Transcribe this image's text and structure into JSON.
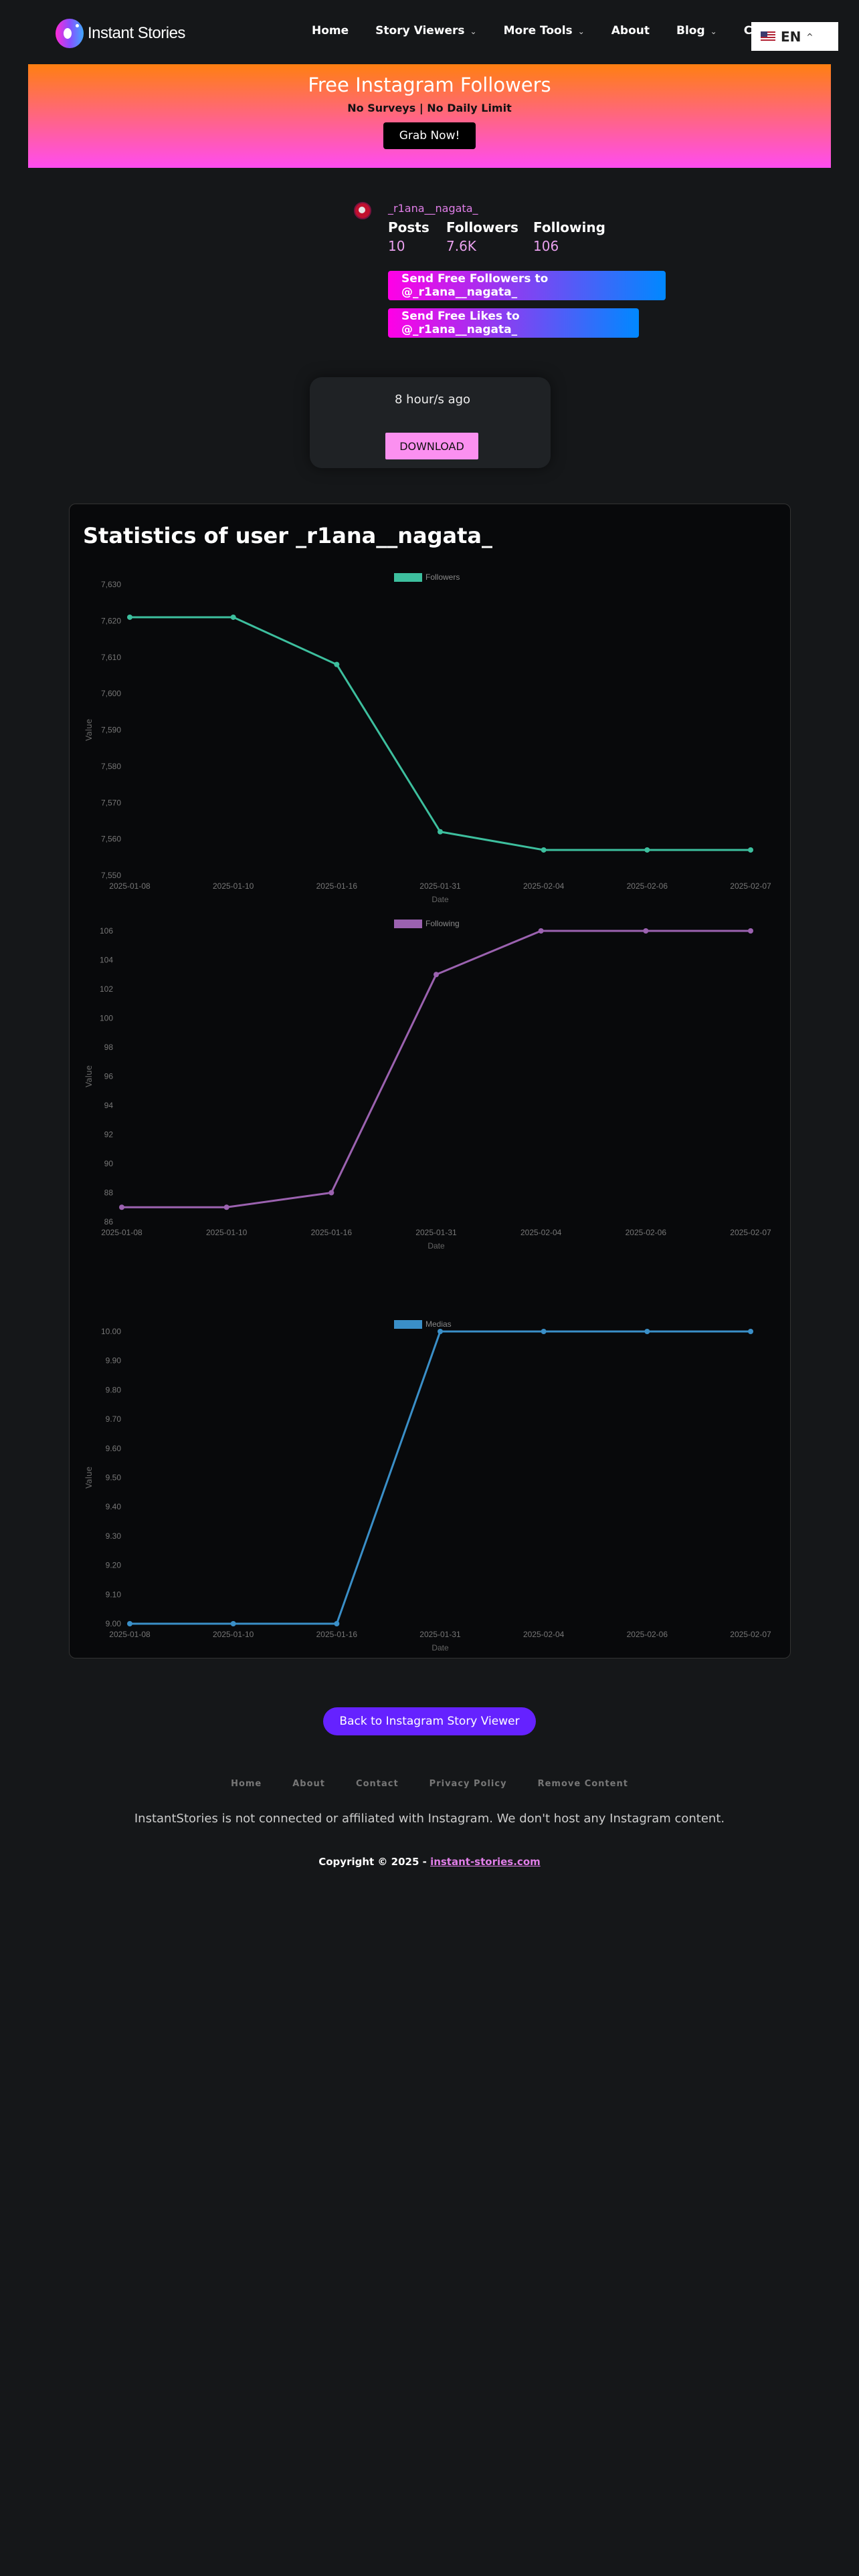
{
  "header": {
    "logo_text": "Instant Stories",
    "nav": [
      {
        "label": "Home",
        "dropdown": false
      },
      {
        "label": "Story Viewers",
        "dropdown": true
      },
      {
        "label": "More Tools",
        "dropdown": true
      },
      {
        "label": "About",
        "dropdown": false
      },
      {
        "label": "Blog",
        "dropdown": true
      },
      {
        "label": "C",
        "dropdown": false
      }
    ],
    "language": "EN"
  },
  "banner": {
    "title": "Free Instagram Followers",
    "subtitle": "No Surveys | No Daily Limit",
    "button": "Grab Now!"
  },
  "profile": {
    "username": "_r1ana__nagata_",
    "stats": [
      {
        "label": "Posts",
        "value": "10"
      },
      {
        "label": "Followers",
        "value": "7.6K"
      },
      {
        "label": "Following",
        "value": "106"
      }
    ],
    "send_followers": "Send Free Followers to @_r1ana__nagata_",
    "send_likes": "Send Free Likes to @_r1ana__nagata_"
  },
  "story_card": {
    "time": "8 hour/s ago",
    "download": "DOWNLOAD"
  },
  "statistics": {
    "title": "Statistics of user _r1ana__nagata_"
  },
  "chart_data": [
    {
      "type": "line",
      "title": "",
      "legend": "Followers",
      "color": "#3dbf9e",
      "xlabel": "Date",
      "ylabel": "Value",
      "categories": [
        "2025-01-08",
        "2025-01-10",
        "2025-01-16",
        "2025-01-31",
        "2025-02-04",
        "2025-02-06",
        "2025-02-07"
      ],
      "values": [
        7621,
        7621,
        7608,
        7562,
        7557,
        7557,
        7557
      ],
      "ylim": [
        7550,
        7630
      ],
      "yticks": [
        "7,630",
        "7,620",
        "7,610",
        "7,600",
        "7,590",
        "7,580",
        "7,570",
        "7,560",
        "7,550"
      ],
      "legend_position": "top-center"
    },
    {
      "type": "line",
      "title": "",
      "legend": "Following",
      "color": "#9b62b0",
      "xlabel": "Date",
      "ylabel": "Value",
      "categories": [
        "2025-01-08",
        "2025-01-10",
        "2025-01-16",
        "2025-01-31",
        "2025-02-04",
        "2025-02-06",
        "2025-02-07"
      ],
      "values": [
        87,
        87,
        88,
        103,
        106,
        106,
        106
      ],
      "ylim": [
        86,
        106
      ],
      "yticks": [
        "106",
        "104",
        "102",
        "100",
        "98",
        "96",
        "94",
        "92",
        "90",
        "88",
        "86"
      ],
      "legend_position": "top-center"
    },
    {
      "type": "line",
      "title": "",
      "legend": "Medias",
      "color": "#3a8fc8",
      "xlabel": "Date",
      "ylabel": "Value",
      "categories": [
        "2025-01-08",
        "2025-01-10",
        "2025-01-16",
        "2025-01-31",
        "2025-02-04",
        "2025-02-06",
        "2025-02-07"
      ],
      "values": [
        9,
        9,
        9,
        10,
        10,
        10,
        10
      ],
      "ylim": [
        9,
        10
      ],
      "yticks": [
        "10.00",
        "9.90",
        "9.80",
        "9.70",
        "9.60",
        "9.50",
        "9.40",
        "9.30",
        "9.20",
        "9.10",
        "9.00"
      ],
      "legend_position": "top-center"
    }
  ],
  "back_button": "Back to Instagram Story Viewer",
  "footer": {
    "links": [
      "Home",
      "About",
      "Contact",
      "Privacy Policy",
      "Remove Content"
    ],
    "disclaimer": "InstantStories is not connected or affiliated with Instagram. We don't host any Instagram content.",
    "copyright": "Copyright © 2025 - ",
    "site_link": "instant-stories.com"
  }
}
